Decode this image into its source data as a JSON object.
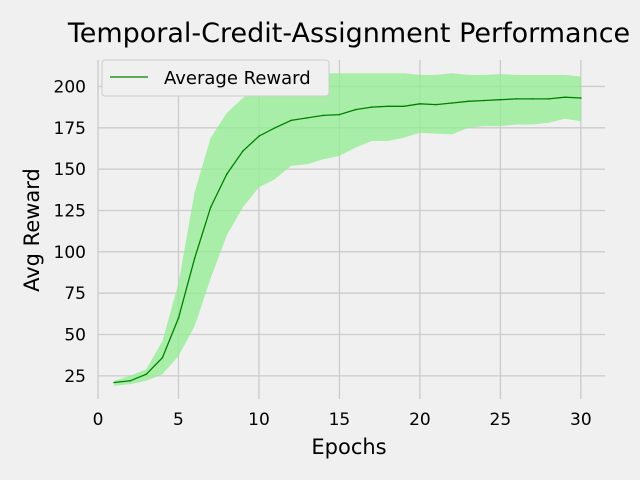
{
  "chart_data": {
    "type": "line",
    "title": "Temporal-Credit-Assignment Performance",
    "xlabel": "Epochs",
    "ylabel": "Avg Reward",
    "xlim": [
      0,
      31.5
    ],
    "ylim": [
      11,
      216
    ],
    "grid": true,
    "legend_position": "top-left",
    "x_ticks": [
      0,
      5,
      10,
      15,
      20,
      25,
      30
    ],
    "y_ticks": [
      25,
      50,
      75,
      100,
      125,
      150,
      175,
      200
    ],
    "x": [
      1,
      2,
      3,
      4,
      5,
      6,
      7,
      8,
      9,
      10,
      11,
      12,
      13,
      14,
      15,
      16,
      17,
      18,
      19,
      20,
      21,
      22,
      23,
      24,
      25,
      26,
      27,
      28,
      29,
      30
    ],
    "series": [
      {
        "name": "Average Reward",
        "color": "#008000",
        "band_color": "#90ee90",
        "values": [
          21,
          22,
          26,
          36,
          60,
          96,
          127,
          147,
          161,
          170,
          175,
          179.5,
          181,
          182.5,
          183,
          186,
          187.5,
          188,
          188,
          189.5,
          189,
          190,
          191,
          191.5,
          192,
          192.5,
          192.5,
          192.5,
          193.5,
          193
        ],
        "lower": [
          19,
          20,
          22,
          26,
          37,
          55,
          84,
          110,
          127,
          139,
          144,
          152,
          153,
          156,
          158,
          163,
          167,
          167,
          169,
          172,
          171.5,
          171,
          175,
          176,
          176,
          177,
          177,
          178,
          180.5,
          179
        ],
        "upper": [
          22,
          25,
          29,
          46,
          81,
          136,
          169,
          184,
          193,
          200,
          204,
          207,
          207,
          208,
          208,
          208,
          208,
          208,
          208,
          207,
          207,
          208,
          207,
          207,
          207.5,
          207,
          207,
          207,
          207,
          206
        ]
      }
    ]
  }
}
